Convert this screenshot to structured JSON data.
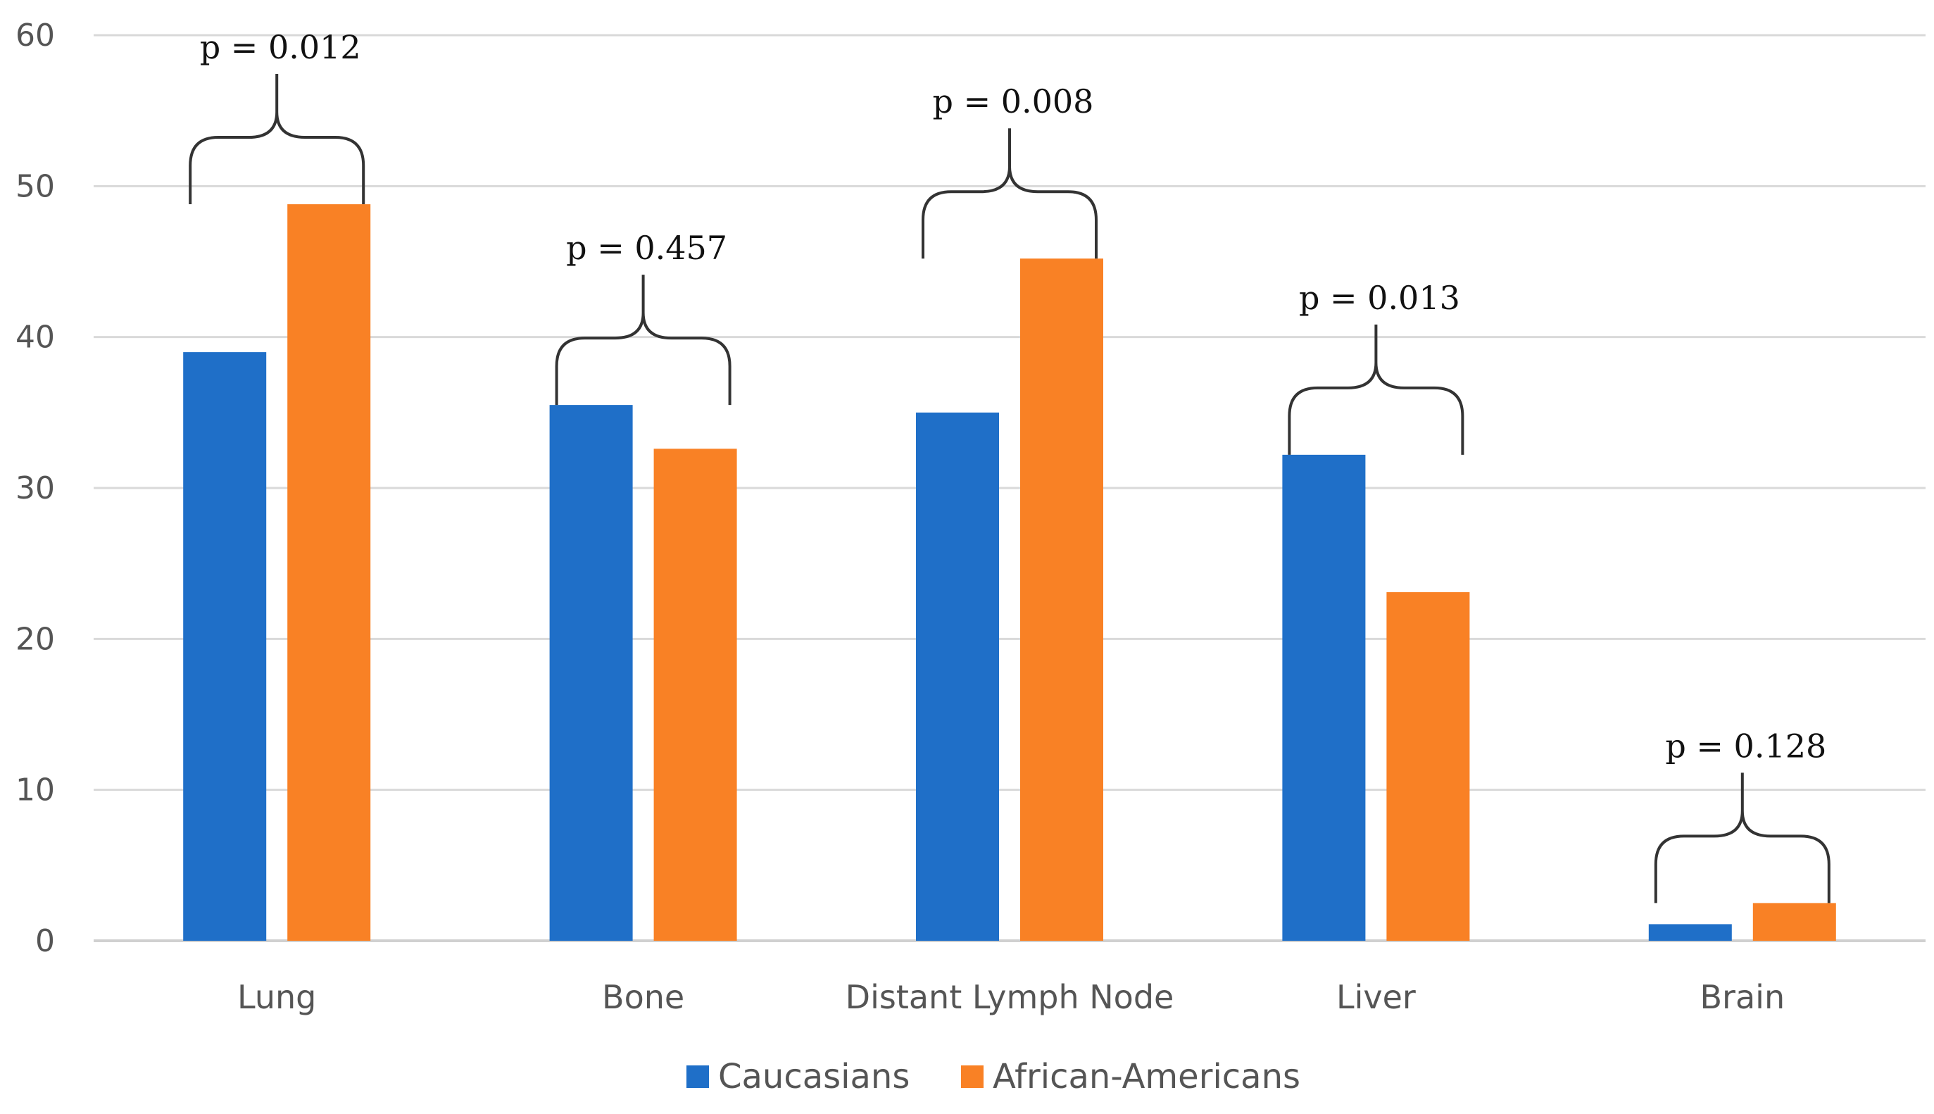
{
  "chart_data": {
    "type": "bar",
    "title": "",
    "xlabel": "",
    "ylabel": "",
    "ylim": [
      0,
      60
    ],
    "yticks": [
      0,
      10,
      20,
      30,
      40,
      50,
      60
    ],
    "grid": true,
    "categories": [
      "Lung",
      "Bone",
      "Distant Lymph Node",
      "Liver",
      "Brain"
    ],
    "series": [
      {
        "name": "Caucasians",
        "color": "#1f6fc8",
        "values": [
          39,
          35.5,
          35,
          32.2,
          1.1
        ]
      },
      {
        "name": "African-Americans",
        "color": "#f98125",
        "values": [
          48.8,
          32.6,
          45.2,
          23.1,
          2.5
        ]
      }
    ],
    "annotations": [
      "p = 0.012",
      "p = 0.457",
      "p = 0.008",
      "p = 0.013",
      "p = 0.128"
    ],
    "legend_position": "bottom-center"
  }
}
